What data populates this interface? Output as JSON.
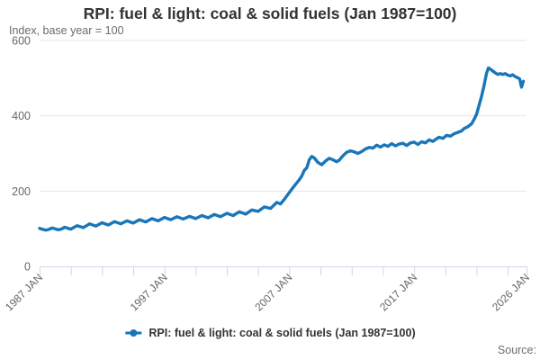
{
  "title": "RPI: fuel & light: coal & solid fuels (Jan 1987=100)",
  "subtitle": "Index, base year = 100",
  "legend": {
    "label": "RPI: fuel & light: coal & solid fuels (Jan 1987=100)"
  },
  "source": {
    "label": "Source:"
  },
  "colors": {
    "line": "#1976b8",
    "grid": "#e6e6e6",
    "axis": "#ccd6eb",
    "tick_label": "#666666",
    "title_text": "#333333"
  },
  "chart_data": {
    "type": "line",
    "title": "RPI: fuel & light: coal & solid fuels (Jan 1987=100)",
    "xlabel": "",
    "ylabel": "Index, base year = 100",
    "ylim": [
      0,
      600
    ],
    "yticks": [
      0,
      200,
      400,
      600
    ],
    "xlim_years": [
      1987,
      2026
    ],
    "xtick_interval_years": 2.5,
    "xtick_last_year": 2026,
    "xtick_labels": [
      {
        "year": 1987,
        "label": "1987 JAN"
      },
      {
        "year": 1997,
        "label": "1997 JAN"
      },
      {
        "year": 2007,
        "label": "2007 JAN"
      },
      {
        "year": 2017,
        "label": "2017 JAN"
      },
      {
        "year": 2026,
        "label": "2026 JAN"
      }
    ],
    "grid": true,
    "legend_position": "bottom",
    "series": [
      {
        "name": "RPI: fuel & light: coal & solid fuels (Jan 1987=100)",
        "points": [
          [
            1987.0,
            101
          ],
          [
            1987.2,
            99
          ],
          [
            1987.5,
            96
          ],
          [
            1987.8,
            99
          ],
          [
            1988.0,
            102
          ],
          [
            1988.5,
            97
          ],
          [
            1988.8,
            100
          ],
          [
            1989.0,
            104
          ],
          [
            1989.5,
            99
          ],
          [
            1990.0,
            108
          ],
          [
            1990.5,
            103
          ],
          [
            1991.0,
            113
          ],
          [
            1991.5,
            107
          ],
          [
            1992.0,
            116
          ],
          [
            1992.5,
            110
          ],
          [
            1993.0,
            119
          ],
          [
            1993.5,
            113
          ],
          [
            1994.0,
            121
          ],
          [
            1994.5,
            115
          ],
          [
            1995.0,
            124
          ],
          [
            1995.5,
            118
          ],
          [
            1996.0,
            127
          ],
          [
            1996.5,
            121
          ],
          [
            1997.0,
            130
          ],
          [
            1997.5,
            124
          ],
          [
            1998.0,
            132
          ],
          [
            1998.5,
            126
          ],
          [
            1999.0,
            133
          ],
          [
            1999.5,
            127
          ],
          [
            2000.0,
            135
          ],
          [
            2000.5,
            129
          ],
          [
            2001.0,
            138
          ],
          [
            2001.5,
            132
          ],
          [
            2002.0,
            141
          ],
          [
            2002.5,
            135
          ],
          [
            2003.0,
            145
          ],
          [
            2003.5,
            139
          ],
          [
            2004.0,
            150
          ],
          [
            2004.5,
            146
          ],
          [
            2005.0,
            158
          ],
          [
            2005.5,
            154
          ],
          [
            2006.0,
            170
          ],
          [
            2006.3,
            166
          ],
          [
            2006.6,
            178
          ],
          [
            2007.0,
            196
          ],
          [
            2007.2,
            205
          ],
          [
            2007.5,
            218
          ],
          [
            2007.8,
            230
          ],
          [
            2008.0,
            240
          ],
          [
            2008.2,
            255
          ],
          [
            2008.4,
            262
          ],
          [
            2008.6,
            283
          ],
          [
            2008.8,
            292
          ],
          [
            2009.0,
            288
          ],
          [
            2009.3,
            276
          ],
          [
            2009.6,
            270
          ],
          [
            2009.9,
            280
          ],
          [
            2010.2,
            287
          ],
          [
            2010.5,
            283
          ],
          [
            2010.8,
            278
          ],
          [
            2011.0,
            282
          ],
          [
            2011.3,
            294
          ],
          [
            2011.6,
            303
          ],
          [
            2011.9,
            307
          ],
          [
            2012.2,
            304
          ],
          [
            2012.5,
            300
          ],
          [
            2012.8,
            305
          ],
          [
            2013.1,
            312
          ],
          [
            2013.4,
            316
          ],
          [
            2013.7,
            314
          ],
          [
            2014.0,
            322
          ],
          [
            2014.3,
            317
          ],
          [
            2014.6,
            323
          ],
          [
            2014.9,
            319
          ],
          [
            2015.2,
            326
          ],
          [
            2015.5,
            320
          ],
          [
            2015.8,
            325
          ],
          [
            2016.1,
            327
          ],
          [
            2016.4,
            321
          ],
          [
            2016.7,
            328
          ],
          [
            2017.0,
            330
          ],
          [
            2017.3,
            324
          ],
          [
            2017.6,
            331
          ],
          [
            2017.9,
            328
          ],
          [
            2018.2,
            336
          ],
          [
            2018.5,
            332
          ],
          [
            2018.8,
            339
          ],
          [
            2019.0,
            343
          ],
          [
            2019.3,
            340
          ],
          [
            2019.6,
            348
          ],
          [
            2019.9,
            346
          ],
          [
            2020.2,
            352
          ],
          [
            2020.5,
            356
          ],
          [
            2020.8,
            360
          ],
          [
            2021.0,
            366
          ],
          [
            2021.3,
            371
          ],
          [
            2021.6,
            379
          ],
          [
            2021.8,
            390
          ],
          [
            2022.0,
            404
          ],
          [
            2022.2,
            428
          ],
          [
            2022.4,
            452
          ],
          [
            2022.6,
            480
          ],
          [
            2022.8,
            513
          ],
          [
            2022.95,
            527
          ],
          [
            2023.1,
            524
          ],
          [
            2023.3,
            519
          ],
          [
            2023.5,
            514
          ],
          [
            2023.7,
            510
          ],
          [
            2023.9,
            512
          ],
          [
            2024.1,
            510
          ],
          [
            2024.3,
            512
          ],
          [
            2024.5,
            508
          ],
          [
            2024.7,
            506
          ],
          [
            2024.9,
            509
          ],
          [
            2025.1,
            504
          ],
          [
            2025.3,
            501
          ],
          [
            2025.45,
            498
          ],
          [
            2025.6,
            476
          ],
          [
            2025.75,
            492
          ]
        ]
      }
    ]
  }
}
